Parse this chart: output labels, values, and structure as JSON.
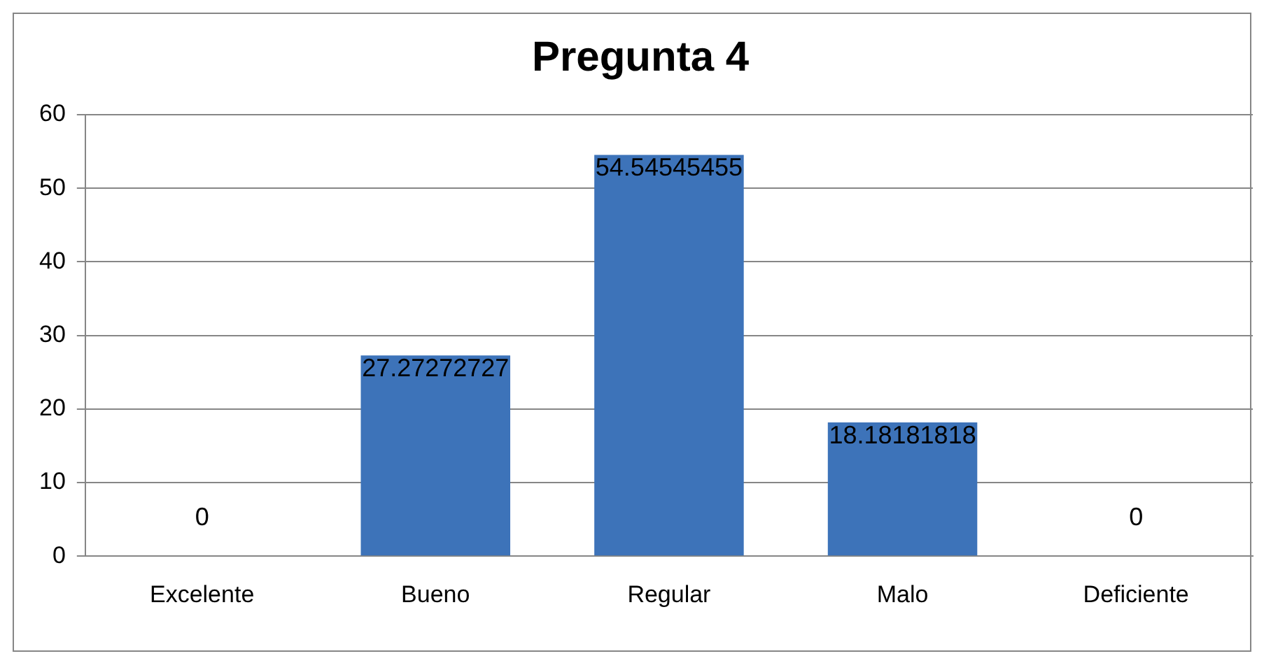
{
  "chart_data": {
    "type": "bar",
    "title": "Pregunta 4",
    "categories": [
      "Excelente",
      "Bueno",
      "Regular",
      "Malo",
      "Deficiente"
    ],
    "values": [
      0,
      27.27272727,
      54.54545455,
      18.18181818,
      0
    ],
    "color": "#3d73b9",
    "ylim": [
      0,
      60
    ],
    "yticks": [
      0,
      10,
      20,
      30,
      40,
      50,
      60
    ],
    "grid": "y",
    "legend": false,
    "data_labels": true
  }
}
